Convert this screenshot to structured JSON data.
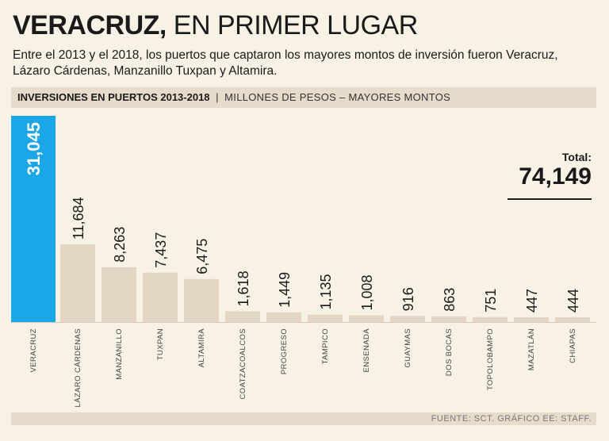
{
  "header": {
    "title_bold": "VERACRUZ,",
    "title_light": "EN PRIMER LUGAR",
    "subtitle": "Entre el 2013 y el 2018, los puertos que captaron los mayores montos de inversión fueron Veracruz, Lázaro Cárdenas, Manzanillo Tuxpan y Altamira."
  },
  "band": {
    "label_bold": "INVERSIONES EN PUERTOS 2013-2018",
    "separator": "|",
    "label_light": "MILLONES DE PESOS – MAYORES MONTOS"
  },
  "total": {
    "label": "Total:",
    "value": "74,149"
  },
  "footer": {
    "source": "FUENTE: SCT. GRÁFICO EE: STAFF."
  },
  "colors": {
    "highlight": "#1ba6e8",
    "bar": "#e3d6c4",
    "background": "#f8f2e6"
  },
  "chart_data": {
    "type": "bar",
    "categories": [
      "VERACRUZ",
      "LÁZARO CÁRDENAS",
      "MANZANILLO",
      "TUXPAN",
      "ALTAMIRA",
      "COATZACOALCOS",
      "PROGRESO",
      "TAMPICO",
      "ENSENADA",
      "GUAYMAS",
      "DOS BOCAS",
      "TOPOLOBAMPO",
      "MAZATLÁN",
      "CHIAPAS"
    ],
    "values": [
      31045,
      11684,
      8263,
      7437,
      6475,
      1618,
      1449,
      1135,
      1008,
      916,
      863,
      751,
      447,
      444
    ],
    "value_labels": [
      "31,045",
      "11,684",
      "8,263",
      "7,437",
      "6,475",
      "1,618",
      "1,449",
      "1,135",
      "1,008",
      "916",
      "863",
      "751",
      "447",
      "444"
    ],
    "highlight_index": 0,
    "title": "INVERSIONES EN PUERTOS 2013-2018",
    "xlabel": "",
    "ylabel": "",
    "ylim": [
      0,
      31045
    ],
    "grid": false
  }
}
